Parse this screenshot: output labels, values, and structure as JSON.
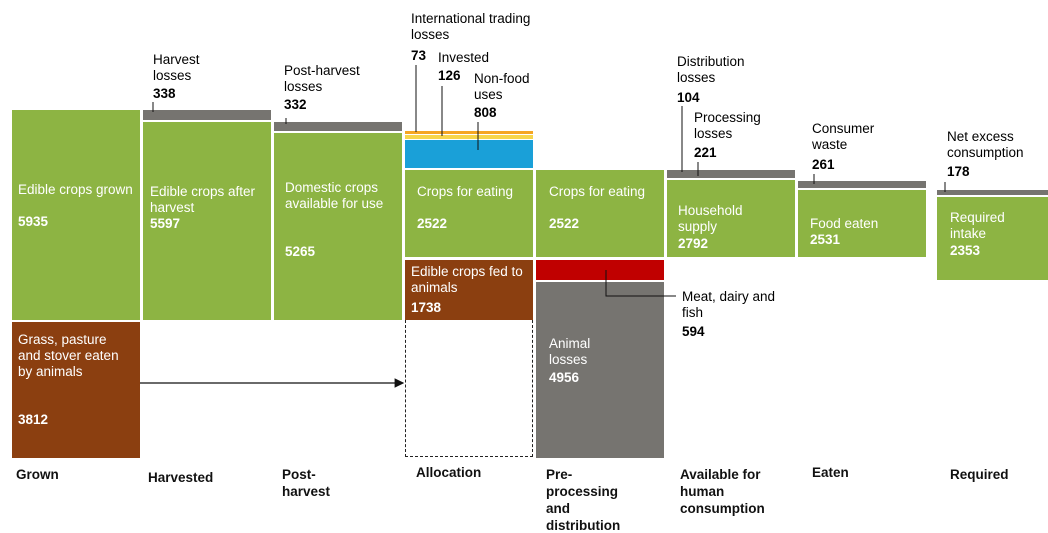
{
  "stages": [
    "Grown",
    "Harvested",
    "Post-harvest",
    "Allocation",
    "Pre-processing and distribution",
    "Available for human consumption",
    "Eaten",
    "Required"
  ],
  "blocks": [
    {
      "label": "Edible crops grown",
      "value": 5935
    },
    {
      "label": "Grass, pasture and stover eaten by animals",
      "value": 3812
    },
    {
      "label": "Edible crops after harvest",
      "value": 5597
    },
    {
      "label": "Domestic crops available for use",
      "value": 5265
    },
    {
      "label": "Crops for eating",
      "value": 2522
    },
    {
      "label": "Edible crops fed to animals",
      "value": 1738
    },
    {
      "label": "Crops for eating",
      "value": 2522
    },
    {
      "label": "Animal losses",
      "value": 4956
    },
    {
      "label": "Household supply",
      "value": 2792
    },
    {
      "label": "Food eaten",
      "value": 2531
    },
    {
      "label": "Required intake",
      "value": 2353
    }
  ],
  "callouts": [
    {
      "label": "Harvest losses",
      "value": 338
    },
    {
      "label": "Post-harvest losses",
      "value": 332
    },
    {
      "label": "International trading losses",
      "value": 73
    },
    {
      "label": "Invested",
      "value": 126
    },
    {
      "label": "Non-food uses",
      "value": 808
    },
    {
      "label": "Distribution losses",
      "value": 104
    },
    {
      "label": "Processing losses",
      "value": 221
    },
    {
      "label": "Meat, dairy and fish",
      "value": 594
    },
    {
      "label": "Consumer waste",
      "value": 261
    },
    {
      "label": "Net excess consumption",
      "value": 178
    }
  ]
}
